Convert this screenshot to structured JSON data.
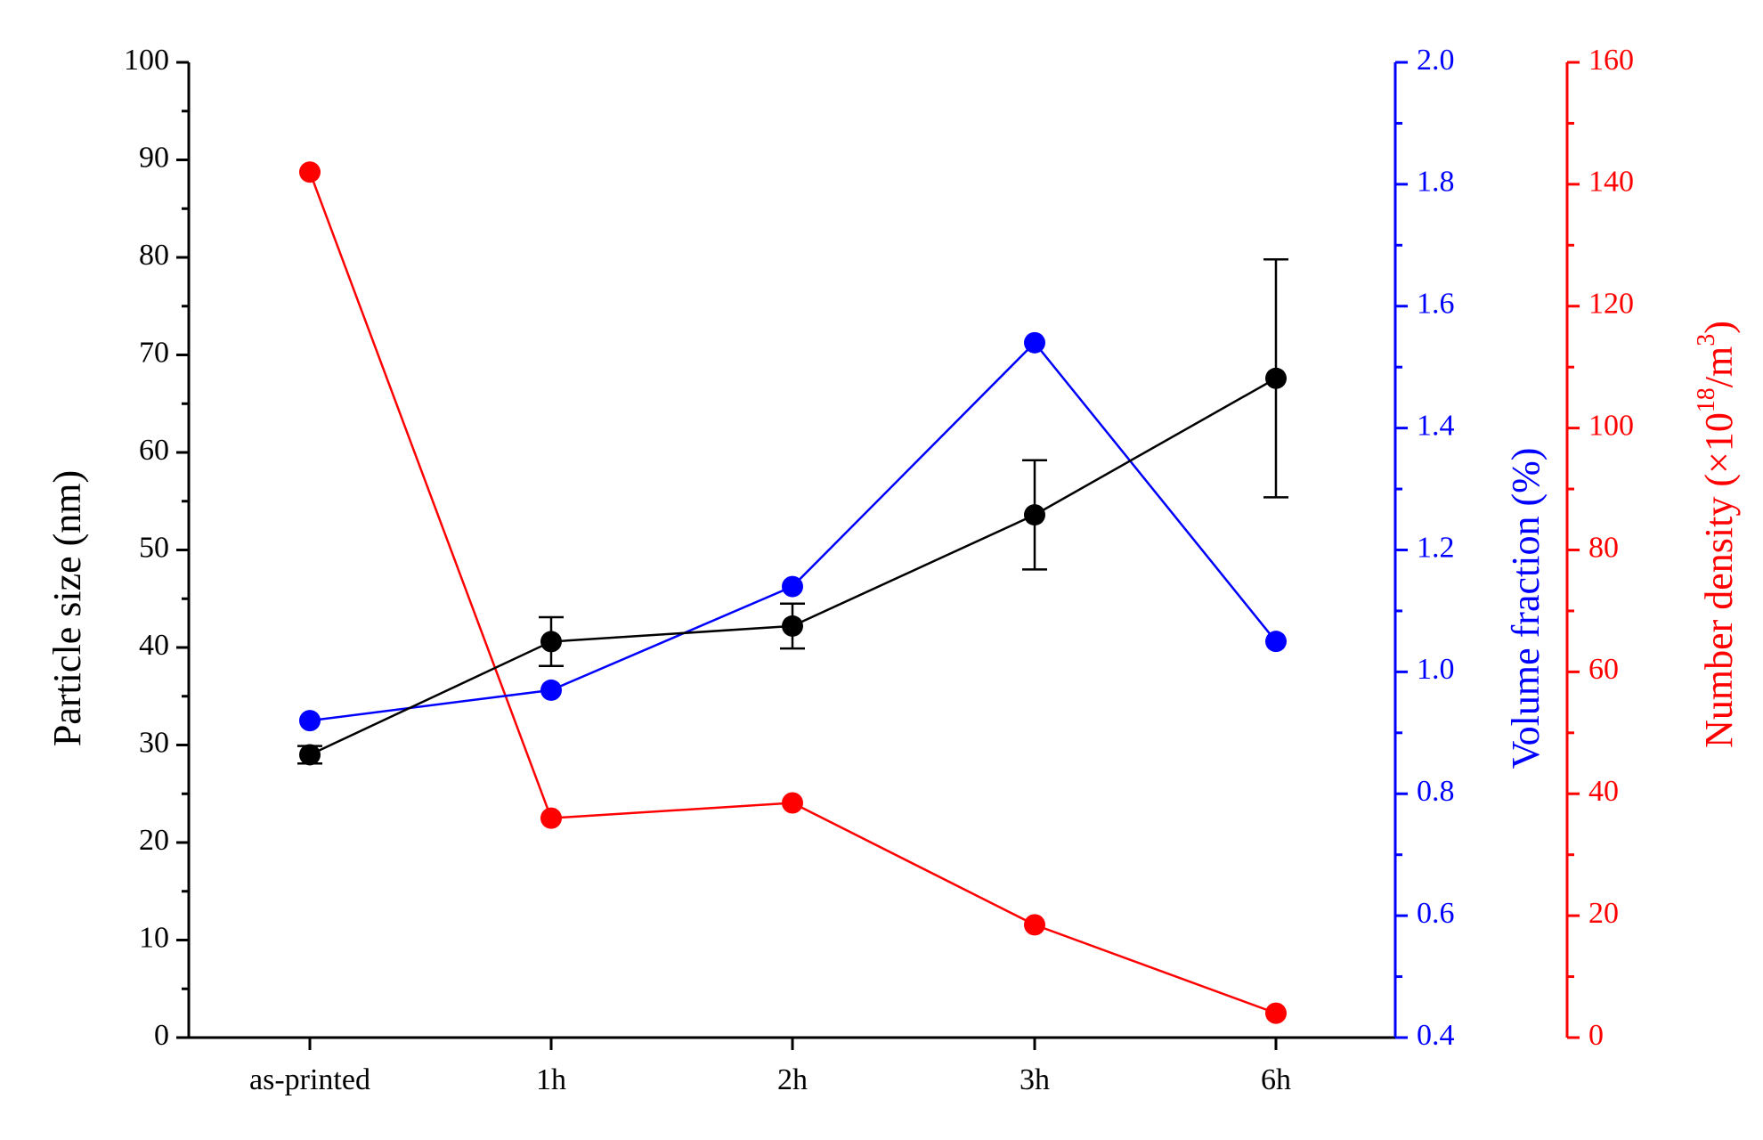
{
  "colors": {
    "size": "#000000",
    "volume": "#0000ff",
    "density": "#ff0000"
  },
  "chart_data": {
    "type": "line",
    "categories": [
      "as-printed",
      "1h",
      "2h",
      "3h",
      "6h"
    ],
    "series": [
      {
        "name": "Particle size",
        "axis": "left",
        "color": "#000000",
        "values": [
          29.0,
          40.6,
          42.2,
          53.6,
          67.6
        ],
        "error": [
          0.9,
          2.5,
          2.3,
          5.6,
          12.2
        ]
      },
      {
        "name": "Volume fraction",
        "axis": "right1",
        "color": "#0000ff",
        "values": [
          0.92,
          0.97,
          1.14,
          1.54,
          1.05
        ]
      },
      {
        "name": "Number density",
        "axis": "right2",
        "color": "#ff0000",
        "values": [
          142,
          36,
          38.5,
          18.5,
          4
        ]
      }
    ],
    "axes": {
      "left": {
        "label": "Particle size (nm)",
        "ylim": [
          0,
          100
        ],
        "ticks": [
          "0",
          "10",
          "20",
          "30",
          "40",
          "50",
          "60",
          "70",
          "80",
          "90",
          "100"
        ]
      },
      "right1": {
        "label": "Volume fraction (%)",
        "ylim": [
          0.4,
          2.0
        ],
        "ticks": [
          "0.4",
          "0.6",
          "0.8",
          "1.0",
          "1.2",
          "1.4",
          "1.6",
          "1.8",
          "2.0"
        ]
      },
      "right2": {
        "label_main": "Number density (×10",
        "label_sup": "18",
        "label_end": "/m",
        "label_sup2": "3",
        "label_close": ")",
        "ylim": [
          0,
          160
        ],
        "ticks": [
          "0",
          "20",
          "40",
          "60",
          "80",
          "100",
          "120",
          "140",
          "160"
        ]
      }
    },
    "grid": false,
    "legend": "none"
  }
}
